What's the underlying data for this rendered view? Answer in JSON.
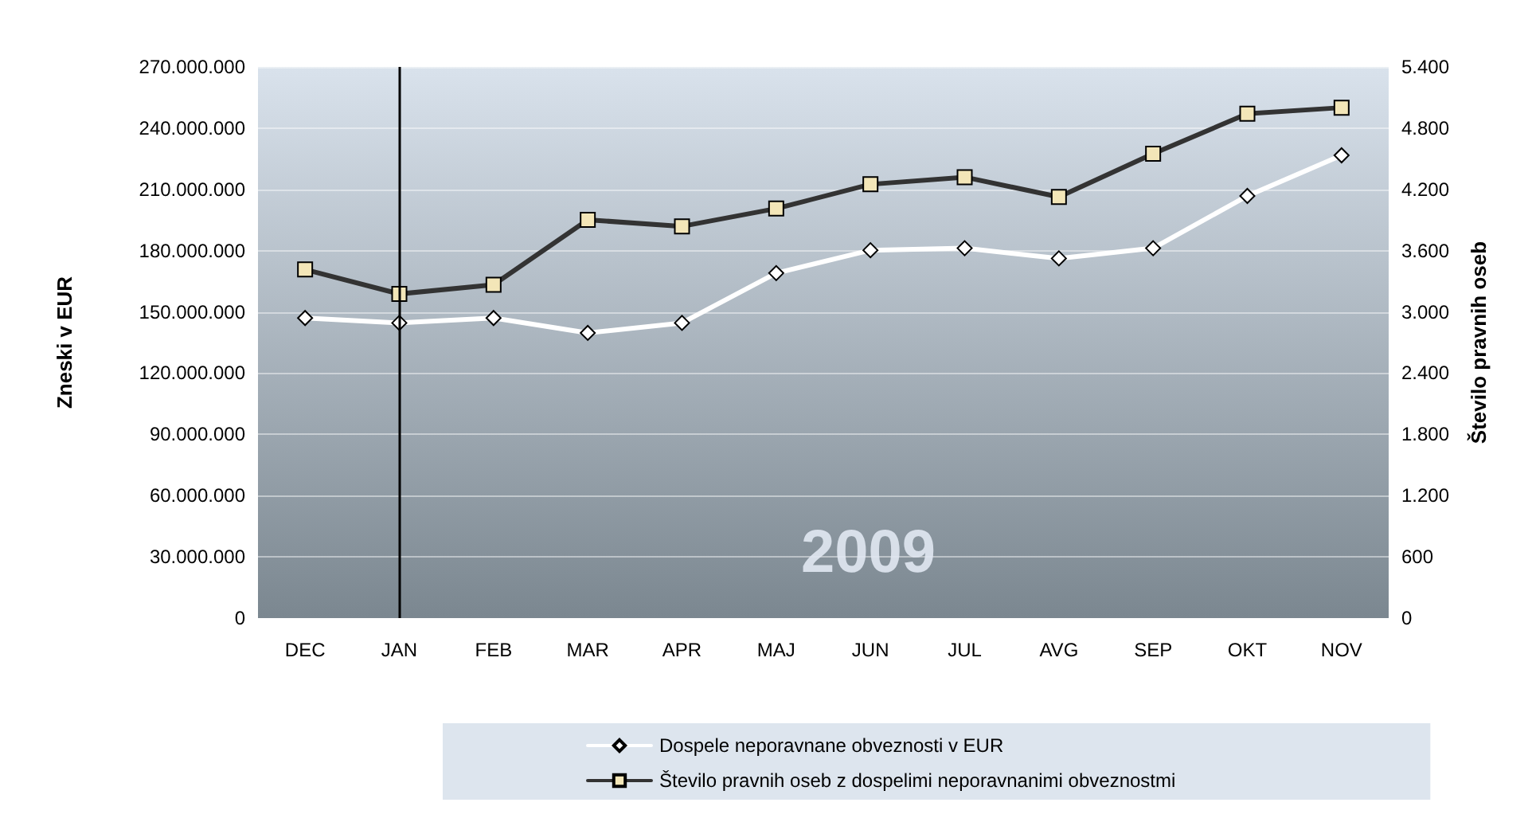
{
  "chart_data": {
    "type": "line",
    "ylabel": "Zneski v EUR",
    "y2label": "Število pravnih oseb",
    "categories": [
      "DEC",
      "JAN",
      "FEB",
      "MAR",
      "APR",
      "MAJ",
      "JUN",
      "JUL",
      "AVG",
      "SEP",
      "OKT",
      "NOV"
    ],
    "series": [
      {
        "name": "Dospele neporavnane obveznosti v EUR",
        "color": "#ffffff",
        "marker": "diamond",
        "values": [
          147000000,
          144600000,
          147000000,
          139700000,
          144600000,
          169000000,
          180200000,
          181200000,
          176200000,
          181200000,
          206800000,
          226700000
        ]
      },
      {
        "name": "Število pravnih oseb z dospelimi neporavnanimi obveznostmi",
        "color": "#333333",
        "marker": "square",
        "axis": "y2",
        "values": [
          3415,
          3176,
          3266,
          3902,
          3838,
          4012,
          4250,
          4320,
          4126,
          4549,
          4941,
          5001
        ]
      }
    ],
    "ylim": [
      0,
      270000000
    ],
    "yticks": [
      {
        "value": 0,
        "label": "0"
      },
      {
        "value": 30000000,
        "label": "30.000.000"
      },
      {
        "value": 60000000,
        "label": "60.000.000"
      },
      {
        "value": 90000000,
        "label": "90.000.000"
      },
      {
        "value": 120000000,
        "label": "120.000.000"
      },
      {
        "value": 150000000,
        "label": "150.000.000"
      },
      {
        "value": 180000000,
        "label": "180.000.000"
      },
      {
        "value": 210000000,
        "label": "210.000.000"
      },
      {
        "value": 240000000,
        "label": "240.000.000"
      },
      {
        "value": 270000000,
        "label": "270.000.000"
      }
    ],
    "y2lim": [
      0,
      5400
    ],
    "y2ticks": [
      0,
      600,
      {
        "value": 1200,
        "label": "1.200"
      },
      {
        "value": 1800,
        "label": "1.800"
      },
      {
        "value": 2400,
        "label": "2.400"
      },
      {
        "value": 3000,
        "label": "3.000"
      },
      {
        "value": 3600,
        "label": "3.600"
      },
      {
        "value": 4200,
        "label": "4.200"
      },
      {
        "value": 4800,
        "label": "4.800"
      },
      {
        "value": 5400,
        "label": "5.400"
      }
    ],
    "ref_lines": [
      {
        "axis": "x",
        "value": "JAN",
        "color": "#000000"
      }
    ],
    "annotations": [
      "2009"
    ],
    "grid": "y",
    "legend": "bottom",
    "line_style": "solid"
  }
}
